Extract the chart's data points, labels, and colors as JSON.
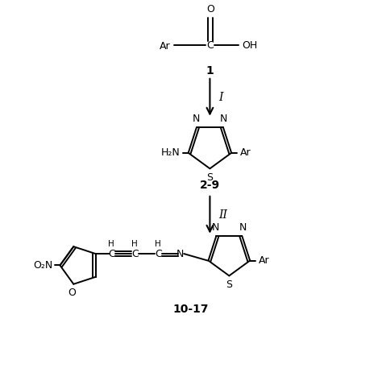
{
  "background_color": "#ffffff",
  "line_color": "#000000",
  "text_color": "#000000",
  "fig_width": 4.74,
  "fig_height": 4.83,
  "dpi": 100,
  "compound1_label": "1",
  "compound29_label": "2-9",
  "compound1017_label": "10-17",
  "arrow1_label": "I",
  "arrow2_label": "II",
  "font_size": 9,
  "font_size_small": 7.5
}
